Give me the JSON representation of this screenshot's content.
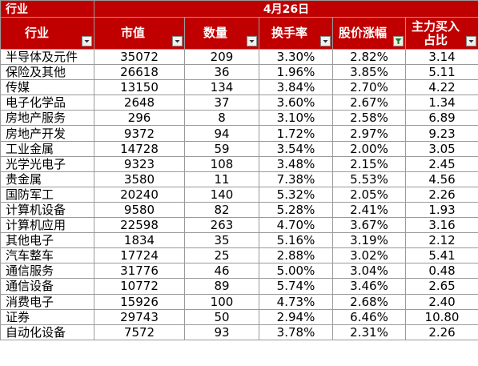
{
  "header": {
    "industry_top": "行业",
    "date": "4月26日"
  },
  "columns": [
    {
      "label": "行业",
      "filter": "filter-dropdown",
      "active": false
    },
    {
      "label": "市值",
      "filter": "filter-dropdown",
      "active": false
    },
    {
      "label": "数量",
      "filter": "filter-dropdown",
      "active": false
    },
    {
      "label": "换手率",
      "filter": "filter-dropdown",
      "active": false
    },
    {
      "label": "股价涨幅",
      "filter": "filter-active",
      "active": true
    },
    {
      "label": "主力买入占比",
      "filter": "filter-dropdown",
      "active": false
    }
  ],
  "rows": [
    [
      "半导体及元件",
      "35072",
      "209",
      "3.30%",
      "2.82%",
      "3.14"
    ],
    [
      "保险及其他",
      "26618",
      "36",
      "1.96%",
      "3.85%",
      "5.11"
    ],
    [
      "传媒",
      "13150",
      "134",
      "3.84%",
      "2.70%",
      "4.22"
    ],
    [
      "电子化学品",
      "2648",
      "37",
      "3.60%",
      "2.67%",
      "1.34"
    ],
    [
      "房地产服务",
      "296",
      "8",
      "3.10%",
      "2.58%",
      "6.89"
    ],
    [
      "房地产开发",
      "9372",
      "94",
      "1.72%",
      "2.97%",
      "9.23"
    ],
    [
      "工业金属",
      "14728",
      "59",
      "3.54%",
      "2.00%",
      "3.05"
    ],
    [
      "光学光电子",
      "9323",
      "108",
      "3.48%",
      "2.15%",
      "2.45"
    ],
    [
      "贵金属",
      "3580",
      "11",
      "7.38%",
      "5.53%",
      "4.56"
    ],
    [
      "国防军工",
      "20240",
      "140",
      "5.32%",
      "2.05%",
      "2.26"
    ],
    [
      "计算机设备",
      "9580",
      "82",
      "5.28%",
      "2.41%",
      "1.93"
    ],
    [
      "计算机应用",
      "22598",
      "263",
      "4.70%",
      "3.67%",
      "3.16"
    ],
    [
      "其他电子",
      "1834",
      "35",
      "5.16%",
      "3.19%",
      "2.12"
    ],
    [
      "汽车整车",
      "17724",
      "25",
      "2.88%",
      "3.02%",
      "5.41"
    ],
    [
      "通信服务",
      "31776",
      "46",
      "5.00%",
      "3.04%",
      "0.48"
    ],
    [
      "通信设备",
      "10772",
      "89",
      "5.74%",
      "3.46%",
      "2.65"
    ],
    [
      "消费电子",
      "15926",
      "100",
      "4.73%",
      "2.68%",
      "2.40"
    ],
    [
      "证券",
      "29743",
      "50",
      "2.94%",
      "6.46%",
      "10.80"
    ],
    [
      "自动化设备",
      "7572",
      "93",
      "3.78%",
      "2.31%",
      "2.26"
    ]
  ]
}
